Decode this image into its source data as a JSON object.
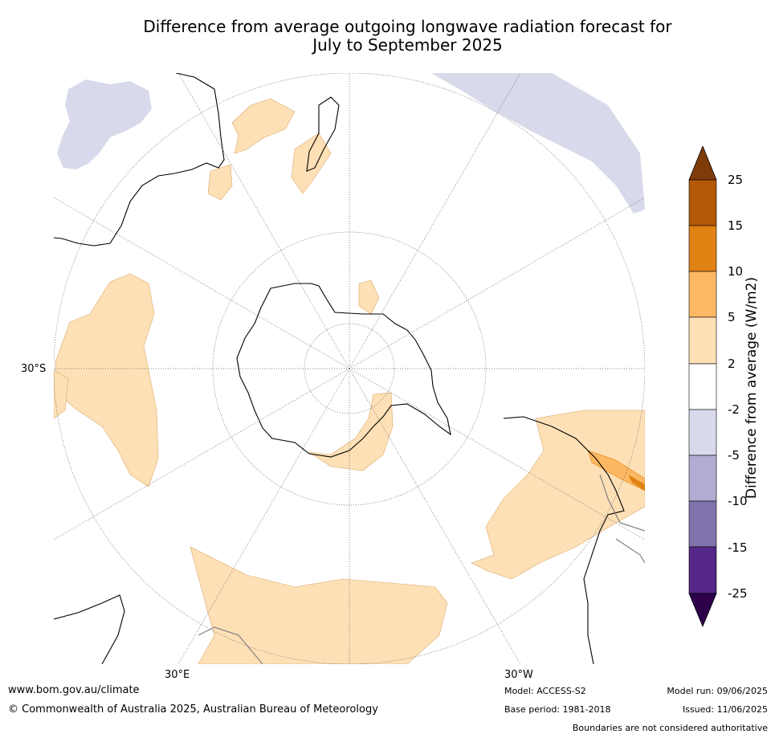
{
  "title_line1": "Difference from average outgoing longwave radiation forecast for",
  "title_line2": "July to September 2025",
  "axis_labels": {
    "lat": "30°S",
    "lon_east": "30°E",
    "lon_west": "30°W"
  },
  "colorbar": {
    "title": "Difference from average (W/m2)",
    "ticks": [
      "25",
      "15",
      "10",
      "5",
      "2",
      "-2",
      "-5",
      "-10",
      "-15",
      "-25"
    ],
    "colors": {
      "above_25": "#7f3b08",
      "15_25": "#b35806",
      "10_15": "#e08214",
      "5_10": "#fdb863",
      "2_5": "#fee0b6",
      "neutral": "#ffffff",
      "m2_m5": "#d8daeb",
      "m5_m10": "#b2abd2",
      "m10_m15": "#8073ac",
      "m15_m25": "#542788",
      "below_m25": "#2d004b"
    }
  },
  "footer": {
    "website": "www.bom.gov.au/climate",
    "copyright": "© Commonwealth of Australia 2025, Australian Bureau of Meteorology",
    "model": "Model: ACCESS-S2",
    "base_period": "Base period: 1981-2018",
    "model_run": "Model run: 09/06/2025",
    "issued": "Issued: 11/06/2025",
    "disclaimer": "Boundaries are not considered authoritative"
  }
}
